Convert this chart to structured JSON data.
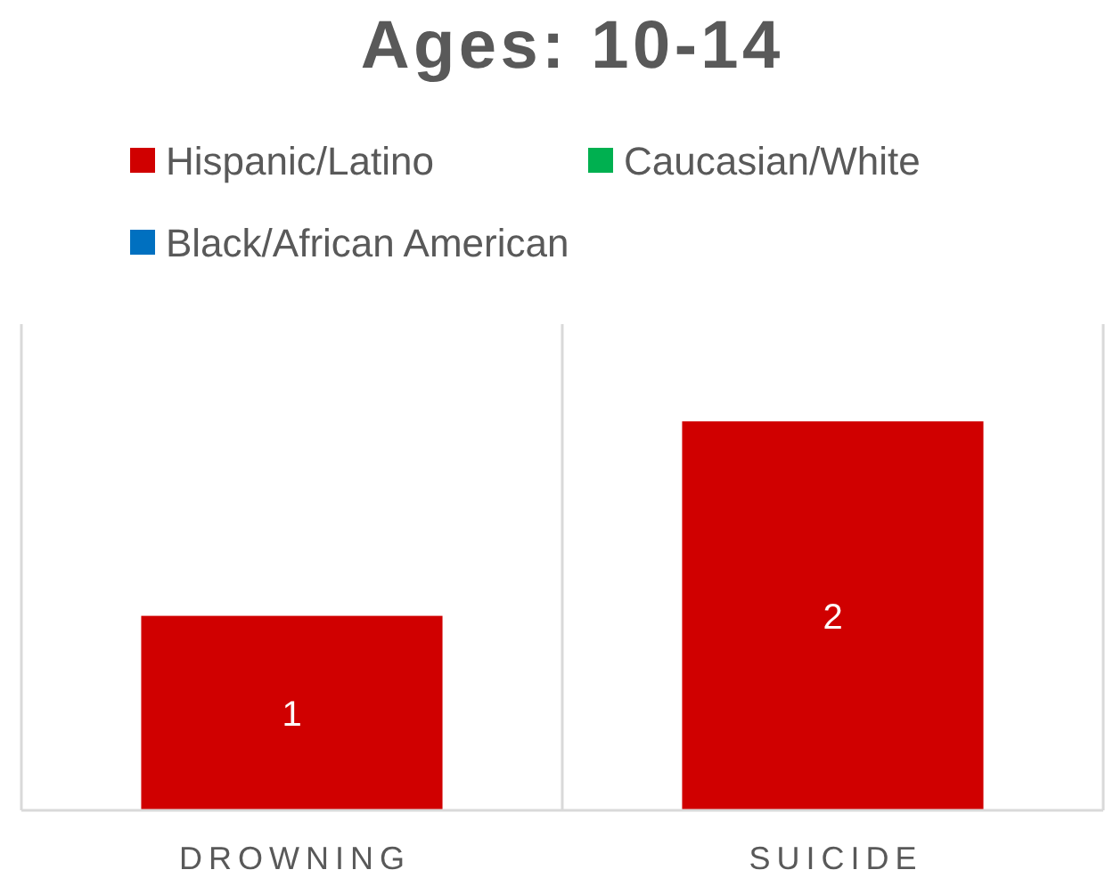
{
  "chart_data": {
    "type": "bar",
    "title": "Ages: 10-14",
    "categories": [
      "DROWNING",
      "SUICIDE"
    ],
    "series": [
      {
        "name": "Hispanic/Latino",
        "color": "#d00000",
        "values": [
          1,
          2
        ]
      },
      {
        "name": "Caucasian/White",
        "color": "#00b050",
        "values": [
          null,
          null
        ]
      },
      {
        "name": "Black/African American",
        "color": "#0070c0",
        "values": [
          null,
          null
        ]
      }
    ],
    "ylim": [
      0,
      2.5
    ],
    "grid": "x",
    "legend": "top",
    "data_labels": true,
    "tick_labels": "x"
  }
}
